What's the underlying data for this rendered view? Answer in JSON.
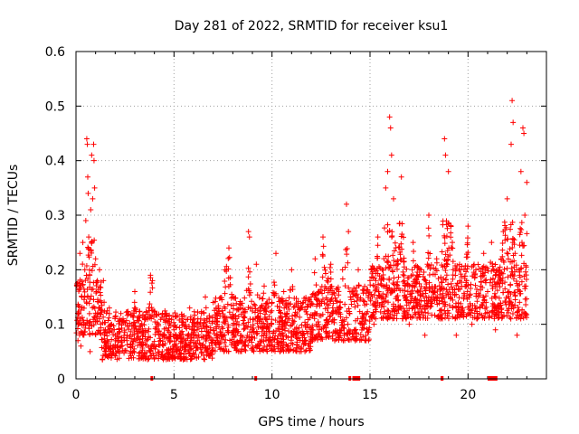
{
  "chart_data": {
    "type": "scatter",
    "title": "Day 281 of 2022, SRMTID for receiver ksu1",
    "xlabel": "GPS time / hours",
    "ylabel": "SRMTID / TECUs",
    "xlim": [
      0,
      24
    ],
    "ylim": [
      0,
      0.6
    ],
    "xticks": [
      0,
      5,
      10,
      15,
      20
    ],
    "yticks": [
      0,
      0.1,
      0.2,
      0.3,
      0.4,
      0.5,
      0.6
    ],
    "grid": true,
    "marker": "+",
    "series_color": "#ff0000",
    "series": [
      {
        "name": "SRMTID",
        "description": "dense scatter, representative samples of the envelope (hour, TECU)",
        "points": [
          [
            0.05,
            0.17
          ],
          [
            0.1,
            0.07
          ],
          [
            0.15,
            0.12
          ],
          [
            0.2,
            0.23
          ],
          [
            0.25,
            0.06
          ],
          [
            0.3,
            0.15
          ],
          [
            0.35,
            0.25
          ],
          [
            0.4,
            0.1
          ],
          [
            0.45,
            0.2
          ],
          [
            0.5,
            0.29
          ],
          [
            0.55,
            0.44
          ],
          [
            0.58,
            0.43
          ],
          [
            0.6,
            0.37
          ],
          [
            0.62,
            0.34
          ],
          [
            0.65,
            0.26
          ],
          [
            0.7,
            0.19
          ],
          [
            0.72,
            0.05
          ],
          [
            0.75,
            0.31
          ],
          [
            0.8,
            0.41
          ],
          [
            0.85,
            0.33
          ],
          [
            0.9,
            0.43
          ],
          [
            0.92,
            0.4
          ],
          [
            0.95,
            0.35
          ],
          [
            1.0,
            0.22
          ],
          [
            1.05,
            0.16
          ],
          [
            1.1,
            0.12
          ],
          [
            1.2,
            0.2
          ],
          [
            1.3,
            0.14
          ],
          [
            1.4,
            0.18
          ],
          [
            1.5,
            0.09
          ],
          [
            1.6,
            0.07
          ],
          [
            1.7,
            0.13
          ],
          [
            1.8,
            0.1
          ],
          [
            1.9,
            0.06
          ],
          [
            2.0,
            0.08
          ],
          [
            2.2,
            0.05
          ],
          [
            2.4,
            0.11
          ],
          [
            2.6,
            0.07
          ],
          [
            2.8,
            0.05
          ],
          [
            3.0,
            0.16
          ],
          [
            3.2,
            0.09
          ],
          [
            3.4,
            0.04
          ],
          [
            3.6,
            0.07
          ],
          [
            3.8,
            0.19
          ],
          [
            3.9,
            0.18
          ],
          [
            4.0,
            0.06
          ],
          [
            4.2,
            0.1
          ],
          [
            4.4,
            0.05
          ],
          [
            4.6,
            0.12
          ],
          [
            4.8,
            0.07
          ],
          [
            5.0,
            0.09
          ],
          [
            5.2,
            0.04
          ],
          [
            5.4,
            0.11
          ],
          [
            5.6,
            0.06
          ],
          [
            5.8,
            0.13
          ],
          [
            6.0,
            0.08
          ],
          [
            6.2,
            0.07
          ],
          [
            6.4,
            0.12
          ],
          [
            6.6,
            0.15
          ],
          [
            6.8,
            0.06
          ],
          [
            7.0,
            0.14
          ],
          [
            7.2,
            0.12
          ],
          [
            7.4,
            0.08
          ],
          [
            7.6,
            0.2
          ],
          [
            7.8,
            0.24
          ],
          [
            8.0,
            0.15
          ],
          [
            8.2,
            0.1
          ],
          [
            8.4,
            0.13
          ],
          [
            8.6,
            0.06
          ],
          [
            8.8,
            0.27
          ],
          [
            8.85,
            0.26
          ],
          [
            9.0,
            0.09
          ],
          [
            9.2,
            0.21
          ],
          [
            9.4,
            0.12
          ],
          [
            9.6,
            0.17
          ],
          [
            9.8,
            0.07
          ],
          [
            10.0,
            0.14
          ],
          [
            10.2,
            0.23
          ],
          [
            10.4,
            0.05
          ],
          [
            10.6,
            0.16
          ],
          [
            10.8,
            0.11
          ],
          [
            11.0,
            0.2
          ],
          [
            11.2,
            0.08
          ],
          [
            11.4,
            0.05
          ],
          [
            11.6,
            0.14
          ],
          [
            11.8,
            0.1
          ],
          [
            12.0,
            0.15
          ],
          [
            12.2,
            0.22
          ],
          [
            12.4,
            0.09
          ],
          [
            12.6,
            0.26
          ],
          [
            12.8,
            0.18
          ],
          [
            13.0,
            0.21
          ],
          [
            13.2,
            0.07
          ],
          [
            13.4,
            0.13
          ],
          [
            13.6,
            0.2
          ],
          [
            13.8,
            0.32
          ],
          [
            13.9,
            0.27
          ],
          [
            14.0,
            0.15
          ],
          [
            14.2,
            0.09
          ],
          [
            14.4,
            0.2
          ],
          [
            14.6,
            0.12
          ],
          [
            14.8,
            0.07
          ],
          [
            15.0,
            0.18
          ],
          [
            15.2,
            0.1
          ],
          [
            15.4,
            0.26
          ],
          [
            15.6,
            0.14
          ],
          [
            15.8,
            0.35
          ],
          [
            15.9,
            0.38
          ],
          [
            16.0,
            0.48
          ],
          [
            16.05,
            0.46
          ],
          [
            16.1,
            0.41
          ],
          [
            16.2,
            0.33
          ],
          [
            16.4,
            0.21
          ],
          [
            16.6,
            0.37
          ],
          [
            16.8,
            0.17
          ],
          [
            17.0,
            0.1
          ],
          [
            17.2,
            0.25
          ],
          [
            17.4,
            0.14
          ],
          [
            17.6,
            0.2
          ],
          [
            17.8,
            0.08
          ],
          [
            18.0,
            0.3
          ],
          [
            18.2,
            0.16
          ],
          [
            18.4,
            0.22
          ],
          [
            18.6,
            0.11
          ],
          [
            18.8,
            0.44
          ],
          [
            18.85,
            0.41
          ],
          [
            19.0,
            0.38
          ],
          [
            19.2,
            0.25
          ],
          [
            19.4,
            0.08
          ],
          [
            19.6,
            0.2
          ],
          [
            19.8,
            0.15
          ],
          [
            20.0,
            0.28
          ],
          [
            20.2,
            0.1
          ],
          [
            20.4,
            0.2
          ],
          [
            20.6,
            0.13
          ],
          [
            20.8,
            0.23
          ],
          [
            21.0,
            0.16
          ],
          [
            21.2,
            0.25
          ],
          [
            21.4,
            0.09
          ],
          [
            21.6,
            0.19
          ],
          [
            21.8,
            0.27
          ],
          [
            22.0,
            0.33
          ],
          [
            22.1,
            0.16
          ],
          [
            22.2,
            0.43
          ],
          [
            22.25,
            0.51
          ],
          [
            22.3,
            0.47
          ],
          [
            22.4,
            0.23
          ],
          [
            22.5,
            0.08
          ],
          [
            22.6,
            0.2
          ],
          [
            22.7,
            0.38
          ],
          [
            22.8,
            0.46
          ],
          [
            22.85,
            0.45
          ],
          [
            22.9,
            0.3
          ],
          [
            22.95,
            0.17
          ],
          [
            23.0,
            0.36
          ]
        ]
      }
    ],
    "data_gaps_marked_at_zero": [
      [
        3.8,
        3.9
      ],
      [
        9.1,
        9.15
      ],
      [
        13.9,
        14.0
      ],
      [
        14.1,
        14.5
      ],
      [
        18.6,
        18.75
      ],
      [
        21.0,
        21.5
      ]
    ]
  }
}
